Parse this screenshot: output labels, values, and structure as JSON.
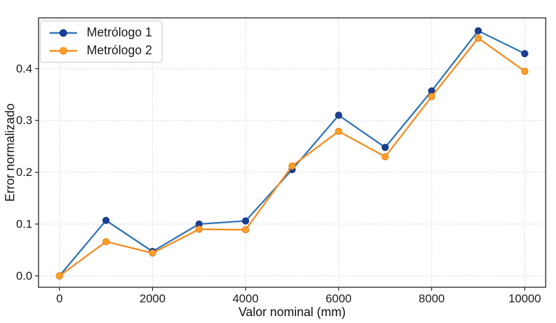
{
  "figure": {
    "background": "#ffffff",
    "frame_color": "#2f2f2f",
    "grid_color": "#c9c9c9",
    "text_color": "#1a1a1a"
  },
  "chart_data": {
    "type": "line",
    "title": "",
    "xlabel": "Valor nominal (mm)",
    "ylabel": "Error normalizado",
    "x": [
      0,
      1000,
      2000,
      3000,
      4000,
      5000,
      6000,
      7000,
      8000,
      9000,
      10000
    ],
    "series": [
      {
        "name": "Metrólogo 1",
        "color": "#2e74b5",
        "marker_color": "#1c3f95",
        "marker_edge": "#16367f",
        "values": [
          0.0,
          0.107,
          0.047,
          0.1,
          0.106,
          0.205,
          0.31,
          0.248,
          0.357,
          0.473,
          0.429
        ]
      },
      {
        "name": "Metrólogo 2",
        "color": "#f68b1f",
        "marker_color": "#f9a02b",
        "marker_edge": "#ef7f10",
        "values": [
          0.0,
          0.066,
          0.044,
          0.09,
          0.089,
          0.212,
          0.279,
          0.23,
          0.346,
          0.459,
          0.395
        ]
      }
    ],
    "xticks": [
      0,
      2000,
      4000,
      6000,
      8000,
      10000
    ],
    "xtick_labels": [
      "0",
      "2000",
      "4000",
      "6000",
      "8000",
      "10000"
    ],
    "ytick_values": [
      0.0,
      0.1,
      0.2,
      0.3,
      0.4
    ],
    "ytick_labels": [
      "0.0",
      "0.1",
      "0.2",
      "0.3",
      "0.4"
    ],
    "xlim": [
      -450,
      10450
    ],
    "ylim": [
      -0.022,
      0.498
    ],
    "grid": true,
    "grid_style": "dotted",
    "legend_position": "upper left"
  }
}
